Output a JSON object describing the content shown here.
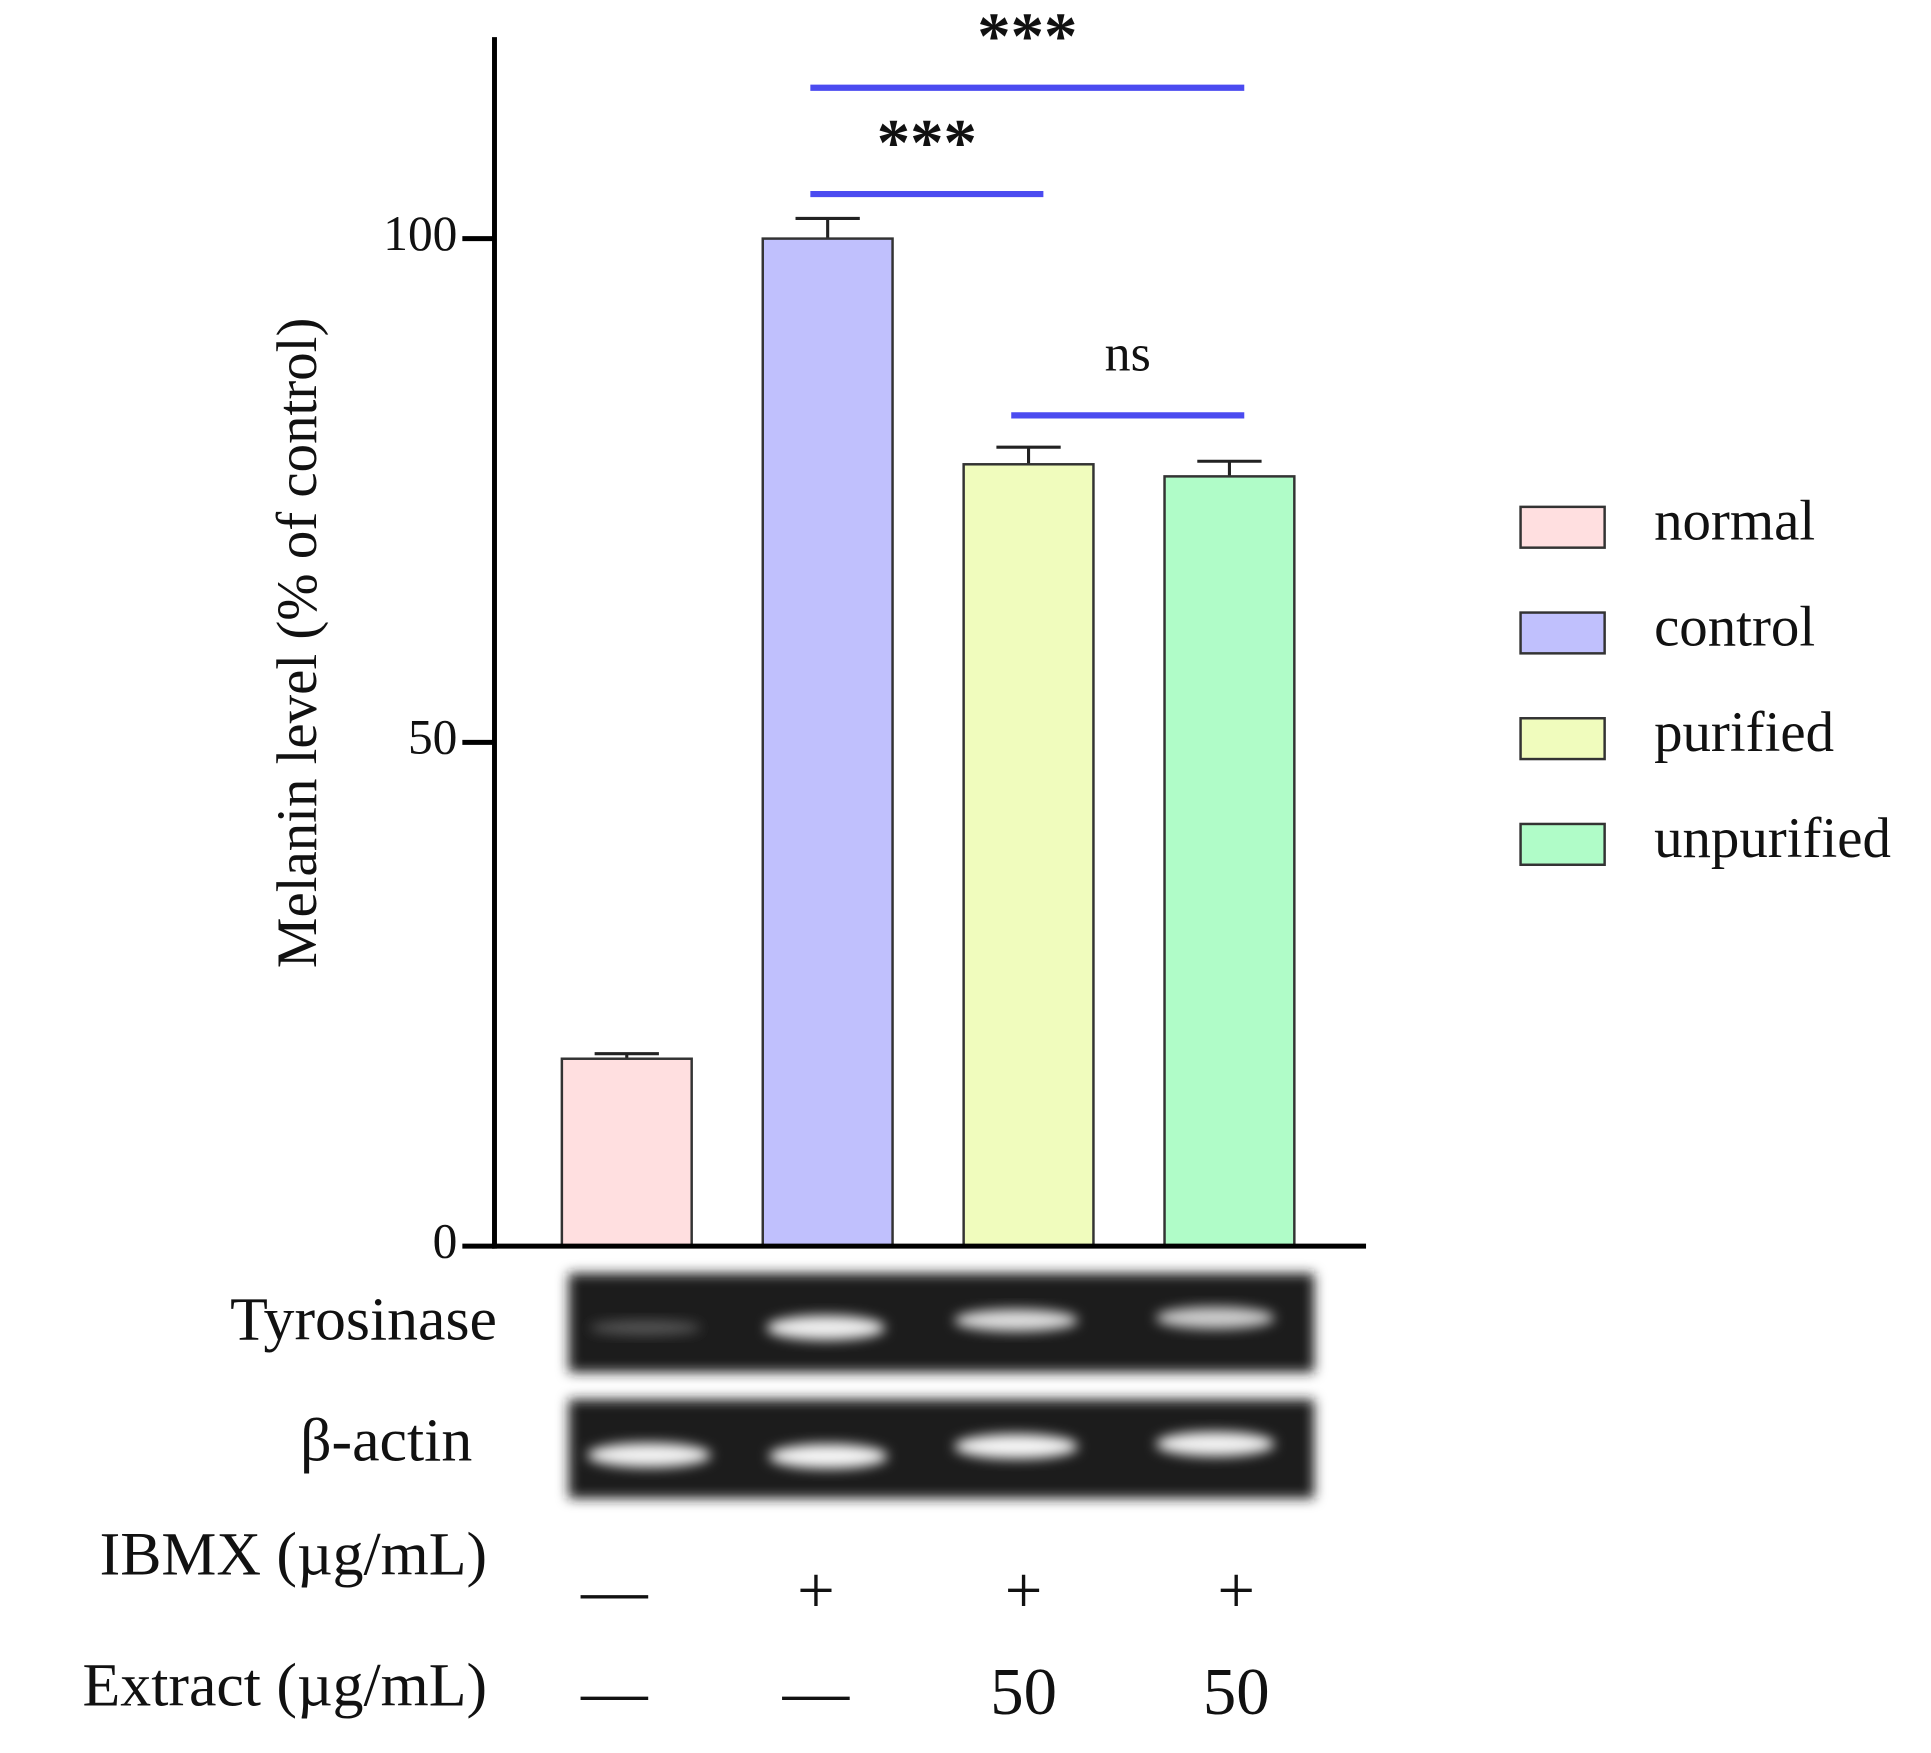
{
  "chart_data": {
    "type": "bar",
    "y_label": "Melanin level (% of control)",
    "categories": [
      "normal",
      "control",
      "purified",
      "unpurified"
    ],
    "colors": [
      "#ffdfe0",
      "#c0c0fd",
      "#f0fcbd",
      "#b0fcc8"
    ],
    "values": [
      18.6,
      100,
      77.6,
      76.4
    ],
    "errors": [
      0.5,
      2.0,
      1.7,
      1.5
    ],
    "ylim": [
      0,
      120
    ],
    "yticks": [
      0,
      50,
      100
    ],
    "annotations": [
      {
        "text": "***",
        "from": "control",
        "to": "unpurified"
      },
      {
        "text": "***",
        "from": "control",
        "to": "purified"
      },
      {
        "text": "ns",
        "from": "purified",
        "to": "unpurified"
      }
    ],
    "blots": [
      "Tyrosinase",
      "β-actin"
    ],
    "conditions": [
      {
        "label": "IBMX (µg/mL)",
        "values": [
          "—",
          "+",
          "+",
          "+"
        ]
      },
      {
        "label": "Extract (µg/mL)",
        "values": [
          "—",
          "—",
          "50",
          "50"
        ]
      }
    ]
  }
}
